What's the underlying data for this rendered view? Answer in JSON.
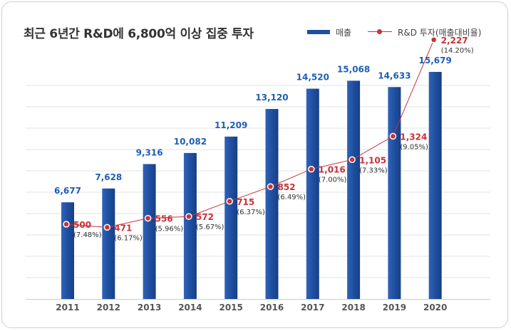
{
  "title": "최근 6년간 R&D에 6,800억 이상 집중 투자",
  "legend": {
    "bar_label": "매출",
    "line_label": "R&D 투자(매출대비율)"
  },
  "colors": {
    "bar": "#1f4fa0",
    "bar_label": "#1d5fb5",
    "line": "#c8323a",
    "grid": "#e3e3e3"
  },
  "chart_data": {
    "type": "bar",
    "title": "최근 6년간 R&D에 6,800억 이상 집중 투자",
    "categories": [
      "2011",
      "2012",
      "2013",
      "2014",
      "2015",
      "2016",
      "2017",
      "2018",
      "2019",
      "2020"
    ],
    "series": [
      {
        "name": "매출",
        "type": "bar",
        "values": [
          6677,
          7628,
          9316,
          10082,
          11209,
          13120,
          14520,
          15068,
          14633,
          15679
        ],
        "labels": [
          "6,677",
          "7,628",
          "9,316",
          "10,082",
          "11,209",
          "13,120",
          "14,520",
          "15,068",
          "14,633",
          "15,679"
        ]
      },
      {
        "name": "R&D 투자(매출대비율)",
        "type": "line",
        "values": [
          500,
          471,
          556,
          572,
          715,
          852,
          1016,
          1105,
          1324,
          2227
        ],
        "labels": [
          "500",
          "471",
          "556",
          "572",
          "715",
          "852",
          "1,016",
          "1,105",
          "1,324",
          "2,227"
        ],
        "ratio_labels": [
          "(7.48%)",
          "(6.17%)",
          "(5.96%)",
          "(5.67%)",
          "(6.37%)",
          "(6.49%)",
          "(7.00%)",
          "(7.33%)",
          "(9.05%)",
          "(14.20%)"
        ]
      }
    ],
    "xlabel": "",
    "ylabel": "",
    "grid": true,
    "legend_position": "top-right"
  }
}
